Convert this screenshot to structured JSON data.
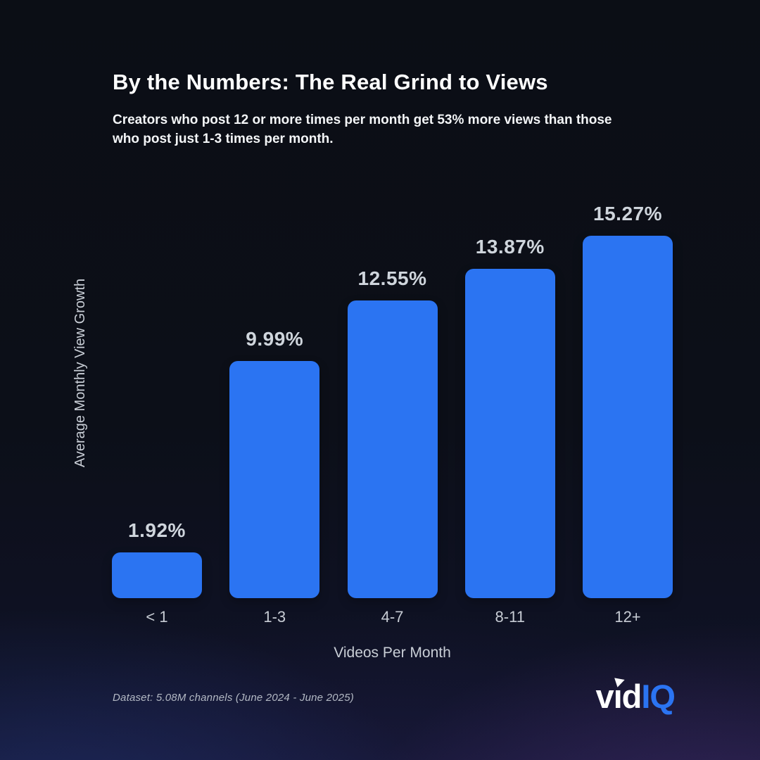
{
  "header": {
    "title": "By the Numbers: The Real Grind to Views",
    "subtitle": "Creators who post 12 or more times per month get 53% more views than those who post just 1-3 times per month."
  },
  "chart_data": {
    "type": "bar",
    "categories": [
      "< 1",
      "1-3",
      "4-7",
      "8-11",
      "12+"
    ],
    "values": [
      1.92,
      9.99,
      12.55,
      13.87,
      15.27
    ],
    "value_labels": [
      "1.92%",
      "9.99%",
      "12.55%",
      "13.87%",
      "15.27%"
    ],
    "title": "By the Numbers: The Real Grind to Views",
    "xlabel": "Videos Per Month",
    "ylabel": "Average Monthly View Growth",
    "ylim": [
      0,
      15.27
    ],
    "grid": false,
    "legend_position": "none",
    "bar_color": "#2b74f2"
  },
  "footer": {
    "dataset_note": "Dataset: 5.08M channels (June 2024 - June 2025)",
    "logo": {
      "word_white": "vıd",
      "word_blue": "IQ",
      "blue_color": "#2b74f2",
      "icon": "play-triangle-icon"
    }
  },
  "colors": {
    "background_top": "#0b0e15",
    "background_bottom_left": "#1c2650",
    "background_bottom_right": "#2a2147",
    "bar": "#2b74f2",
    "title_text": "#ffffff",
    "label_text": "#cfd5dc",
    "axis_text": "#c9ced6"
  }
}
